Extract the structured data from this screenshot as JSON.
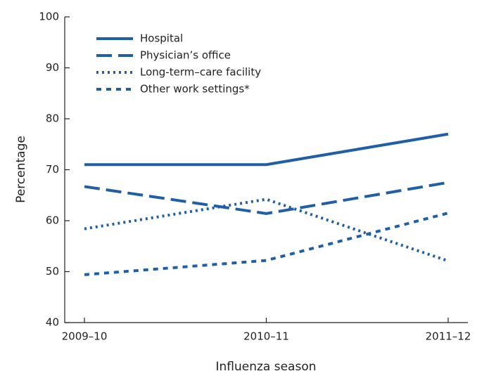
{
  "chart_data": {
    "type": "line",
    "x_label": "Influenza season",
    "y_label": "Percentage",
    "categories": [
      "2009–10",
      "2010–11",
      "2011–12"
    ],
    "series": [
      {
        "name": "Hospital",
        "color": "#1f5fa8",
        "dash": "solid",
        "values": [
          71,
          71,
          77
        ]
      },
      {
        "name": "Physician’s office",
        "color": "#1f5fa8",
        "dash": "long-dash",
        "values": [
          66.7,
          61.4,
          67.5
        ]
      },
      {
        "name": "Long-term–care facility",
        "color": "#1f5fa8",
        "dash": "dotted",
        "values": [
          58.4,
          64.2,
          52.1
        ]
      },
      {
        "name": "Other work settings*",
        "color": "#1f5fa8",
        "dash": "short-dash",
        "values": [
          49.4,
          52.2,
          61.5
        ]
      }
    ],
    "ylim": [
      40,
      100
    ],
    "yticks": [
      40,
      50,
      60,
      70,
      80,
      90,
      100
    ],
    "legend": "upper left"
  }
}
